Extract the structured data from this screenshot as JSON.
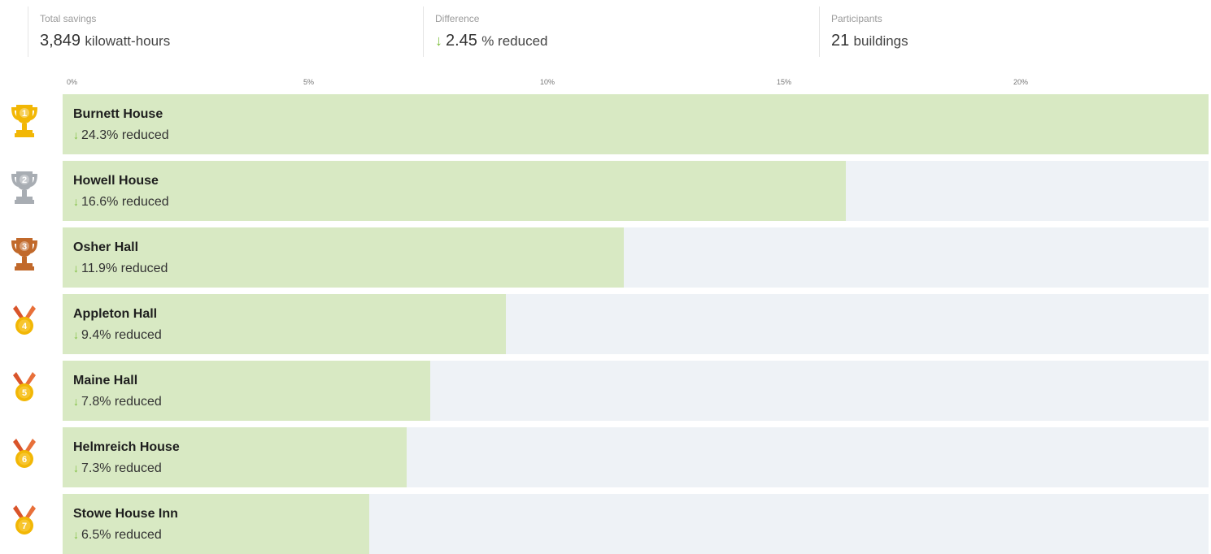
{
  "summary": {
    "total_savings": {
      "label": "Total savings",
      "value": "3,849",
      "unit": "kilowatt-hours"
    },
    "difference": {
      "label": "Difference",
      "arrow": "↓",
      "value": "2.45",
      "unit": "% reduced"
    },
    "participants": {
      "label": "Participants",
      "value": "21",
      "unit": "buildings"
    }
  },
  "axis": {
    "ticks": [
      "0%",
      "5%",
      "10%",
      "15%",
      "20%"
    ],
    "max_percent": 24.3
  },
  "colors": {
    "bar_fill": "#d8e9c3",
    "track": "#eef2f6",
    "arrow": "#7fbf3f",
    "gold": "#f2b705",
    "silver": "#a8adb3",
    "bronze": "#c1692b"
  },
  "reduced_arrow": "↓",
  "leaderboard": [
    {
      "rank": "1",
      "icon": "gold-trophy-icon",
      "name": "Burnett House",
      "percent": 24.3,
      "label": "24.3% reduced"
    },
    {
      "rank": "2",
      "icon": "silver-trophy-icon",
      "name": "Howell House",
      "percent": 16.6,
      "label": "16.6% reduced"
    },
    {
      "rank": "3",
      "icon": "bronze-trophy-icon",
      "name": "Osher Hall",
      "percent": 11.9,
      "label": "11.9% reduced"
    },
    {
      "rank": "4",
      "icon": "medal-icon",
      "name": "Appleton Hall",
      "percent": 9.4,
      "label": "9.4% reduced"
    },
    {
      "rank": "5",
      "icon": "medal-icon",
      "name": "Maine Hall",
      "percent": 7.8,
      "label": "7.8% reduced"
    },
    {
      "rank": "6",
      "icon": "medal-icon",
      "name": "Helmreich House",
      "percent": 7.3,
      "label": "7.3% reduced"
    },
    {
      "rank": "7",
      "icon": "medal-icon",
      "name": "Stowe House Inn",
      "percent": 6.5,
      "label": "6.5% reduced"
    }
  ]
}
